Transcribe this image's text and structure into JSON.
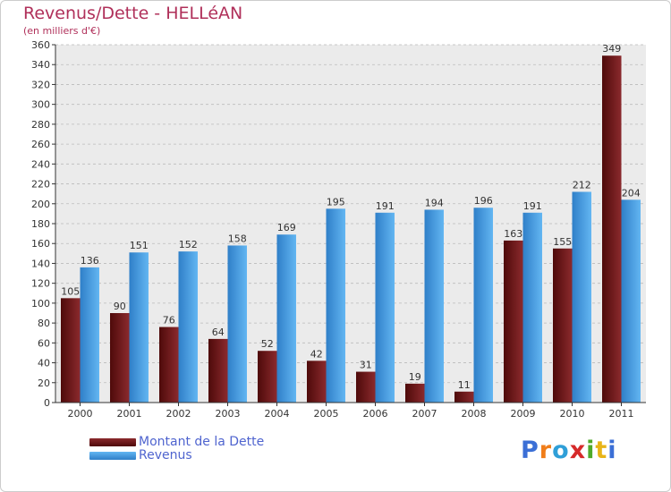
{
  "header": {
    "title": "Revenus/Dette - HELLéAN",
    "subtitle": "(en milliers d'€)"
  },
  "logo": {
    "text": "Proxiti",
    "letters": [
      "P",
      "r",
      "o",
      "x",
      "i",
      "t",
      "i"
    ],
    "letter_colors": [
      "#3b6fd6",
      "#f07d1a",
      "#2f9fd8",
      "#d62a2a",
      "#4faa2a",
      "#e8b418",
      "#3b6fd6"
    ]
  },
  "colors": {
    "dette": "#7a1a1a",
    "revenus": "#4aa0e6",
    "axis": "#333333",
    "grid": "#bbbbbb",
    "plot_bg": "#ebebeb"
  },
  "chart_data": {
    "type": "bar",
    "title": "Revenus/Dette - HELLéAN",
    "subtitle": "(en milliers d'€)",
    "xlabel": "",
    "ylabel": "",
    "categories": [
      "2000",
      "2001",
      "2002",
      "2003",
      "2004",
      "2005",
      "2006",
      "2007",
      "2008",
      "2009",
      "2010",
      "2011"
    ],
    "series": [
      {
        "name": "Montant de la Dette",
        "values": [
          105,
          90,
          76,
          64,
          52,
          42,
          31,
          19,
          11,
          163,
          155,
          349
        ]
      },
      {
        "name": "Revenus",
        "values": [
          136,
          151,
          152,
          158,
          169,
          195,
          191,
          194,
          196,
          191,
          212,
          204
        ]
      }
    ],
    "ylim": [
      0,
      360
    ],
    "ytick_step": 20,
    "grid": true,
    "legend_position": "bottom-left"
  }
}
